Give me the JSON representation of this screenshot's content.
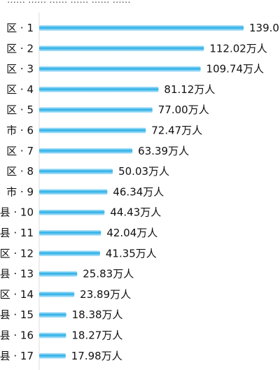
{
  "chart_data": {
    "type": "bar",
    "orientation": "horizontal",
    "header_text_partial": "……  ……  ……·……  ……  ……",
    "categories": [
      "区 · 1",
      "区 · 2",
      "区 · 3",
      "区 · 4",
      "区 · 5",
      "市 · 6",
      "区 · 7",
      "区 · 8",
      "市 · 9",
      "县 · 10",
      "县 · 11",
      "区 · 12",
      "县 · 13",
      "区 · 14",
      "县 · 15",
      "县 · 16",
      "县 · 17"
    ],
    "values": [
      139.0,
      112.02,
      109.74,
      81.12,
      77.0,
      72.47,
      63.39,
      50.03,
      46.34,
      44.43,
      42.04,
      41.35,
      25.83,
      23.89,
      18.38,
      18.27,
      17.98
    ],
    "value_labels": [
      "139.0",
      "112.02万人",
      "109.74万人",
      "81.12万人",
      "77.00万人",
      "72.47万人",
      "63.39万人",
      "50.03万人",
      "46.34万人",
      "44.43万人",
      "42.04万人",
      "41.35万人",
      "25.83万人",
      "23.89万人",
      "18.38万人",
      "18.27万人",
      "17.98万人"
    ],
    "unit": "万人",
    "xlim": [
      0,
      139.0
    ],
    "bar_color": "#29aee6",
    "grid": false,
    "legend": "none"
  }
}
